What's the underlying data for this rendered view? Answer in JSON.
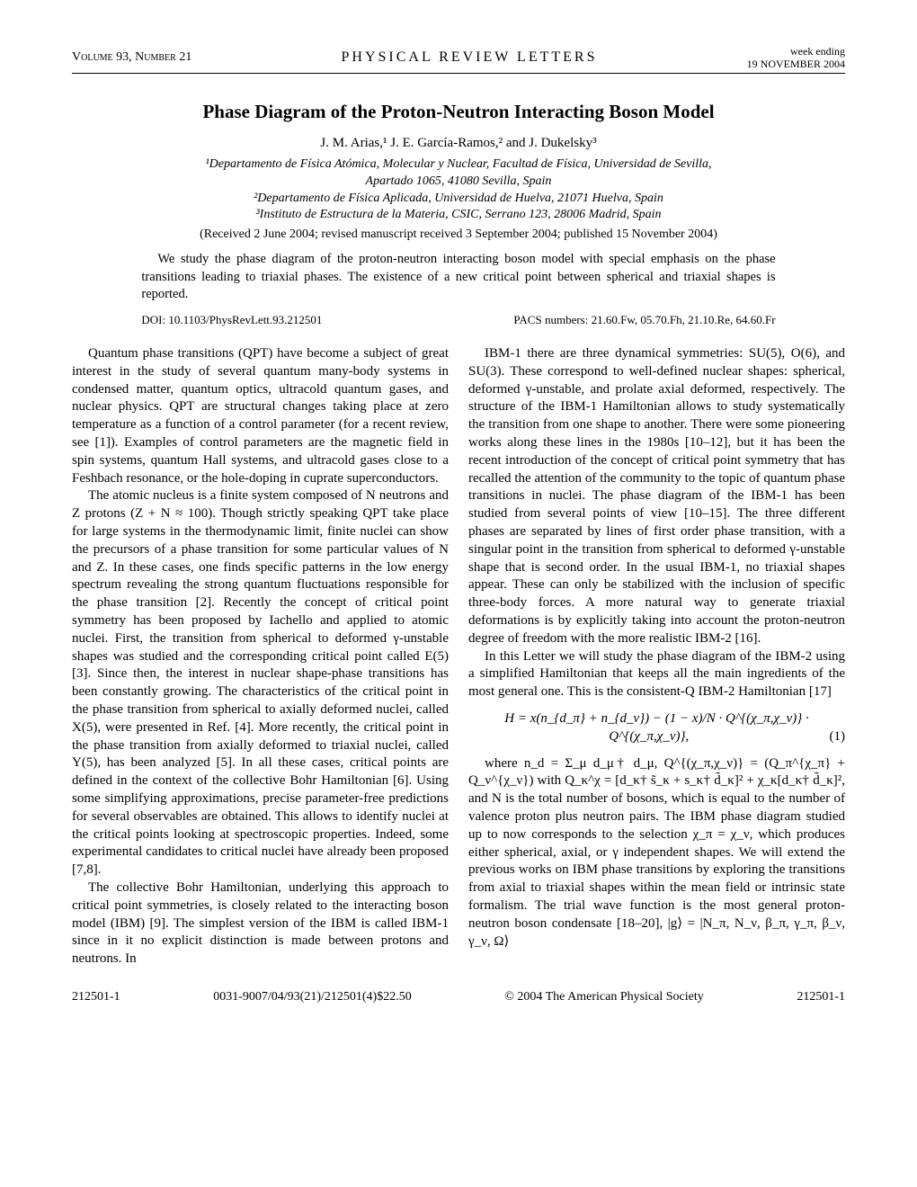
{
  "header": {
    "left": "Volume 93, Number 21",
    "center": "PHYSICAL REVIEW LETTERS",
    "right_top": "week ending",
    "right_bottom": "19 NOVEMBER 2004"
  },
  "title": "Phase Diagram of the Proton-Neutron Interacting Boson Model",
  "authors": "J. M. Arias,¹ J. E. García-Ramos,² and J. Dukelsky³",
  "affiliations": [
    "¹Departamento de Física Atómica, Molecular y Nuclear, Facultad de Física, Universidad de Sevilla,",
    "Apartado 1065, 41080 Sevilla, Spain",
    "²Departamento de Física Aplicada, Universidad de Huelva, 21071 Huelva, Spain",
    "³Instituto de Estructura de la Materia, CSIC, Serrano 123, 28006 Madrid, Spain"
  ],
  "received": "(Received 2 June 2004; revised manuscript received 3 September 2004; published 15 November 2004)",
  "abstract": "We study the phase diagram of the proton-neutron interacting boson model with special emphasis on the phase transitions leading to triaxial phases. The existence of a new critical point between spherical and triaxial shapes is reported.",
  "doi": "DOI: 10.1103/PhysRevLett.93.212501",
  "pacs": "PACS numbers: 21.60.Fw, 05.70.Fh, 21.10.Re, 64.60.Fr",
  "left_column": {
    "p1": "Quantum phase transitions (QPT) have become a subject of great interest in the study of several quantum many-body systems in condensed matter, quantum optics, ultracold quantum gases, and nuclear physics. QPT are structural changes taking place at zero temperature as a function of a control parameter (for a recent review, see [1]). Examples of control parameters are the magnetic field in spin systems, quantum Hall systems, and ultracold gases close to a Feshbach resonance, or the hole-doping in cuprate superconductors.",
    "p2": "The atomic nucleus is a finite system composed of N neutrons and Z protons (Z + N ≈ 100). Though strictly speaking QPT take place for large systems in the thermodynamic limit, finite nuclei can show the precursors of a phase transition for some particular values of N and Z. In these cases, one finds specific patterns in the low energy spectrum revealing the strong quantum fluctuations responsible for the phase transition [2]. Recently the concept of critical point symmetry has been proposed by Iachello and applied to atomic nuclei. First, the transition from spherical to deformed γ-unstable shapes was studied and the corresponding critical point called E(5) [3]. Since then, the interest in nuclear shape-phase transitions has been constantly growing. The characteristics of the critical point in the phase transition from spherical to axially deformed nuclei, called X(5), were presented in Ref. [4]. More recently, the critical point in the phase transition from axially deformed to triaxial nuclei, called Y(5), has been analyzed [5]. In all these cases, critical points are defined in the context of the collective Bohr Hamiltonian [6]. Using some simplifying approximations, precise parameter-free predictions for several observables are obtained. This allows to identify nuclei at the critical points looking at spectroscopic properties. Indeed, some experimental candidates to critical nuclei have already been proposed [7,8].",
    "p3": "The collective Bohr Hamiltonian, underlying this approach to critical point symmetries, is closely related to the interacting boson model (IBM) [9]. The simplest version of the IBM is called IBM-1 since in it no explicit distinction is made between protons and neutrons. In"
  },
  "right_column": {
    "p1": "IBM-1 there are three dynamical symmetries: SU(5), O(6), and SU(3). These correspond to well-defined nuclear shapes: spherical, deformed γ-unstable, and prolate axial deformed, respectively. The structure of the IBM-1 Hamiltonian allows to study systematically the transition from one shape to another. There were some pioneering works along these lines in the 1980s [10–12], but it has been the recent introduction of the concept of critical point symmetry that has recalled the attention of the community to the topic of quantum phase transitions in nuclei. The phase diagram of the IBM-1 has been studied from several points of view [10–15]. The three different phases are separated by lines of first order phase transition, with a singular point in the transition from spherical to deformed γ-unstable shape that is second order. In the usual IBM-1, no triaxial shapes appear. These can only be stabilized with the inclusion of specific three-body forces. A more natural way to generate triaxial deformations is by explicitly taking into account the proton-neutron degree of freedom with the more realistic IBM-2 [16].",
    "p2": "In this Letter we will study the phase diagram of the IBM-2 using a simplified Hamiltonian that keeps all the main ingredients of the most general one. This is the consistent-Q IBM-2 Hamiltonian [17]",
    "eq1": "H = x(n_{d_π} + n_{d_ν}) − (1 − x)/N · Q^{(χ_π,χ_ν)} · Q^{(χ_π,χ_ν)},",
    "eq1num": "(1)",
    "p3": "where n_d = Σ_μ d_μ† d_μ, Q^{(χ_π,χ_ν)} = (Q_π^{χ_π} + Q_ν^{χ_ν}) with Q_κ^χ = [d_κ† s̃_κ + s_κ† d̃_κ]² + χ_κ[d_κ† d̃_κ]², and N is the total number of bosons, which is equal to the number of valence proton plus neutron pairs. The IBM phase diagram studied up to now corresponds to the selection χ_π = χ_ν, which produces either spherical, axial, or γ independent shapes. We will extend the previous works on IBM phase transitions by exploring the transitions from axial to triaxial shapes within the mean field or intrinsic state formalism. The trial wave function is the most general proton-neutron boson condensate [18–20], |g⟩ = |N_π, N_ν, β_π, γ_π, β_ν, γ_ν, Ω⟩"
  },
  "footer": {
    "left": "212501-1",
    "center": "0031-9007/04/93(21)/212501(4)$22.50",
    "copyright": "© 2004 The American Physical Society",
    "right": "212501-1"
  }
}
